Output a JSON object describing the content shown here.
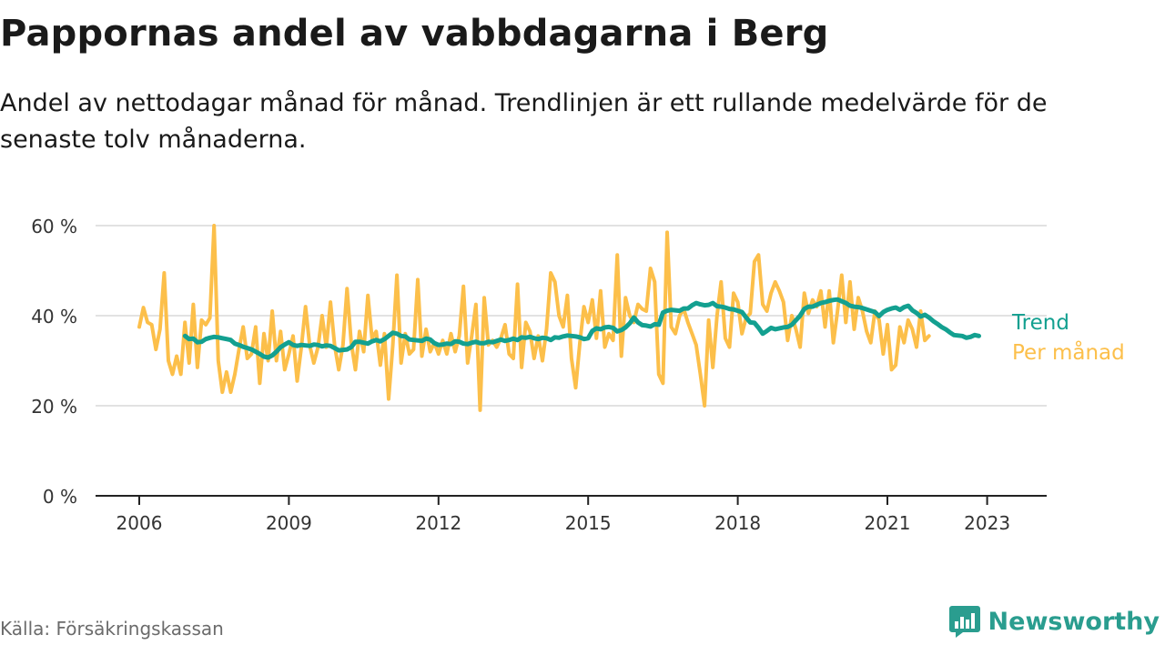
{
  "header": {
    "title": "Pappornas andel av vabbdagarna i Berg",
    "subtitle": "Andel av nettodagar månad för månad. Trendlinjen är ett rullande medelvärde för de senaste tolv månaderna."
  },
  "footer": {
    "source": "Källa: Försäkringskassan",
    "brand": "Newsworthy"
  },
  "colors": {
    "trend": "#13a090",
    "monthly": "#fcbf4a",
    "grid": "#d9d9d9",
    "axis": "#222222",
    "brand": "#2a9d8f"
  },
  "chart_data": {
    "type": "line",
    "title": "Pappornas andel av vabbdagarna i Berg",
    "xlabel": "",
    "ylabel": "",
    "xlim": [
      2005.7,
      2024.7
    ],
    "ylim": [
      0,
      60
    ],
    "y_ticks": [
      0,
      20,
      40,
      60
    ],
    "y_tick_labels": [
      "0 %",
      "20 %",
      "40 %",
      "60 %"
    ],
    "x_ticks": [
      2006,
      2009,
      2012,
      2015,
      2018,
      2021,
      2023
    ],
    "x_tick_labels": [
      "2006",
      "2009",
      "2012",
      "2015",
      "2018",
      "2021",
      "2023"
    ],
    "grid": true,
    "series": [
      {
        "name": "Per månad",
        "start": 2006.0,
        "step": 0.0833333,
        "values": [
          37.5,
          41.8,
          38.5,
          38.0,
          32.5,
          37.0,
          49.5,
          30.0,
          27.0,
          31.0,
          27.0,
          38.5,
          29.5,
          42.5,
          28.5,
          39.0,
          38.0,
          39.5,
          60.0,
          30.0,
          23.0,
          27.5,
          23.0,
          27.0,
          32.5,
          37.5,
          30.5,
          31.5,
          37.5,
          25.0,
          36.0,
          30.0,
          41.0,
          30.0,
          36.5,
          28.0,
          31.5,
          35.5,
          25.5,
          33.0,
          42.0,
          33.5,
          29.5,
          33.0,
          40.0,
          33.0,
          43.0,
          33.5,
          28.0,
          33.5,
          46.0,
          34.0,
          28.0,
          36.5,
          32.0,
          44.5,
          35.0,
          36.5,
          29.0,
          36.0,
          21.5,
          33.5,
          49.0,
          29.5,
          36.0,
          31.5,
          32.5,
          48.0,
          31.0,
          37.0,
          32.0,
          34.0,
          31.5,
          34.5,
          31.5,
          36.0,
          32.0,
          35.5,
          46.5,
          29.5,
          35.5,
          42.5,
          19.0,
          44.0,
          33.5,
          34.5,
          33.0,
          35.0,
          38.0,
          31.5,
          30.5,
          47.0,
          28.5,
          38.5,
          36.5,
          30.5,
          35.5,
          30.0,
          37.0,
          49.5,
          47.5,
          40.0,
          37.5,
          44.5,
          30.5,
          24.0,
          34.0,
          42.0,
          38.5,
          43.5,
          35.0,
          45.5,
          33.0,
          36.0,
          34.5,
          53.5,
          31.0,
          44.0,
          40.0,
          38.5,
          42.5,
          41.5,
          41.0,
          50.5,
          47.5,
          27.0,
          25.0,
          58.5,
          37.5,
          36.0,
          40.0,
          41.5,
          38.5,
          36.0,
          33.5,
          27.0,
          20.0,
          39.0,
          28.5,
          40.0,
          47.5,
          35.0,
          33.0,
          45.0,
          43.0,
          36.0,
          39.5,
          40.5,
          52.0,
          53.5,
          42.5,
          41.0,
          45.0,
          47.5,
          45.5,
          43.0,
          34.5,
          40.0,
          37.0,
          33.0,
          45.0,
          40.5,
          43.5,
          42.0,
          45.5,
          37.5,
          45.5,
          34.0,
          41.0,
          49.0,
          38.5,
          47.5,
          37.0,
          44.0,
          41.0,
          36.5,
          34.0,
          41.0,
          39.0,
          31.5,
          38.0,
          28.0,
          29.0,
          37.5,
          34.0,
          39.0,
          37.0,
          33.0,
          41.0,
          34.5,
          35.5
        ]
      },
      {
        "name": "Trend",
        "start": 2006.917,
        "step": 0.0833333,
        "values": [
          35.5,
          34.8,
          34.9,
          34.1,
          34.2,
          34.8,
          35.1,
          35.3,
          35.2,
          35.0,
          34.8,
          34.6,
          33.8,
          33.5,
          33.1,
          32.8,
          32.5,
          32.0,
          31.5,
          30.9,
          30.7,
          31.2,
          32.0,
          33.0,
          33.6,
          34.1,
          33.5,
          33.3,
          33.5,
          33.4,
          33.3,
          33.6,
          33.5,
          33.2,
          33.4,
          33.3,
          32.8,
          32.3,
          32.4,
          32.5,
          33.0,
          34.2,
          34.2,
          34.0,
          33.8,
          34.3,
          34.6,
          34.3,
          34.8,
          35.5,
          36.2,
          36.0,
          35.5,
          35.4,
          34.7,
          34.6,
          34.5,
          34.4,
          34.9,
          34.7,
          33.9,
          33.5,
          33.6,
          33.8,
          33.7,
          34.3,
          34.2,
          33.8,
          33.7,
          34.0,
          34.2,
          33.9,
          33.9,
          34.2,
          34.1,
          34.4,
          34.7,
          34.4,
          34.6,
          34.9,
          34.6,
          35.2,
          35.1,
          35.3,
          35.0,
          34.8,
          35.1,
          35.0,
          34.6,
          35.2,
          35.1,
          35.4,
          35.6,
          35.5,
          35.4,
          35.2,
          34.8,
          35.0,
          36.6,
          37.2,
          37.0,
          37.4,
          37.5,
          37.3,
          36.5,
          36.8,
          37.4,
          38.3,
          39.6,
          38.5,
          37.9,
          37.8,
          37.6,
          38.1,
          38.0,
          40.7,
          41.1,
          41.3,
          41.2,
          41.1,
          41.6,
          41.6,
          42.3,
          42.8,
          42.5,
          42.3,
          42.4,
          42.8,
          42.1,
          42.0,
          41.8,
          41.5,
          41.4,
          41.1,
          40.8,
          39.6,
          38.5,
          38.4,
          37.3,
          36.0,
          36.6,
          37.3,
          37.0,
          37.2,
          37.4,
          37.5,
          38.0,
          39.0,
          40.0,
          41.5,
          42.0,
          42.0,
          42.4,
          42.8,
          43.0,
          43.3,
          43.5,
          43.6,
          43.2,
          42.8,
          42.2,
          42.0,
          41.9,
          41.7,
          41.4,
          41.1,
          40.8,
          39.9,
          40.8,
          41.3,
          41.6,
          41.8,
          41.3,
          41.9,
          42.2,
          41.2,
          40.6,
          39.8,
          40.2,
          39.6,
          38.8,
          38.2,
          37.5,
          37.0,
          36.3,
          35.7,
          35.6,
          35.5,
          35.1,
          35.3,
          35.7,
          35.5
        ]
      }
    ],
    "legend": [
      {
        "label": "Trend",
        "position": "right-end"
      },
      {
        "label": "Per månad",
        "position": "right-end"
      }
    ]
  }
}
